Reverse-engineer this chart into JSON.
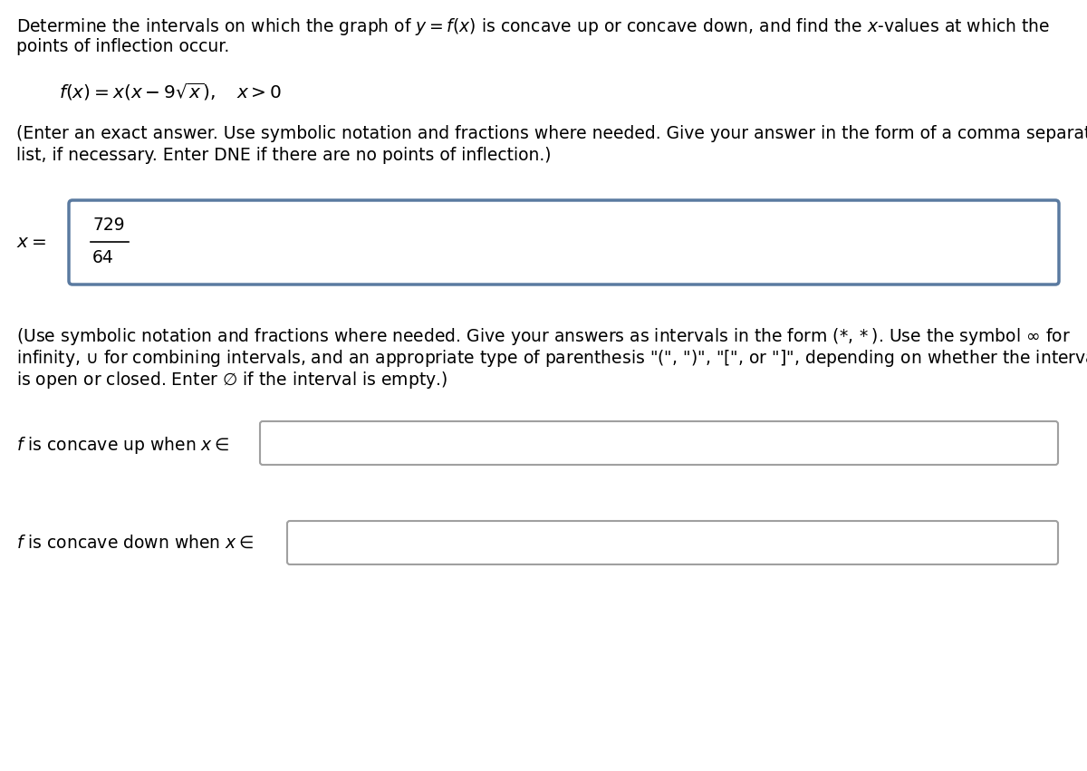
{
  "bg_color": "#ffffff",
  "text_color": "#000000",
  "box1_color": "#5a7aa0",
  "box2_color": "#a0a0a0",
  "box3_color": "#a0a0a0",
  "font_size_main": 13.5,
  "font_size_func": 14.5,
  "line1": "Determine the intervals on which the graph of $y = f(x)$ is concave up or concave down, and find the $x$-values at which the",
  "line2": "points of inflection occur.",
  "func_line": "$f(x) = x(x - 9\\sqrt{x}), \\quad x > 0$",
  "instr1_line1": "(Enter an exact answer. Use symbolic notation and fractions where needed. Give your answer in the form of a comma separated",
  "instr1_line2": "list, if necessary. Enter DNE if there are no points of inflection.)",
  "x_eq": "$x =$",
  "frac_num": "729",
  "frac_den": "64",
  "instr2_line1": "(Use symbolic notation and fractions where needed. Give your answers as intervals in the form $(*, *)$. Use the symbol $\\infty$ for",
  "instr2_line2": "infinity, $\\cup$ for combining intervals, and an appropriate type of parenthesis \"(\", \")\", \"[\", or \"]\", depending on whether the interval",
  "instr2_line3": "is open or closed. Enter $\\varnothing$ if the interval is empty.)",
  "concave_up": "$f$ is concave up when $x \\in$",
  "concave_down": "$f$ is concave down when $x \\in$"
}
